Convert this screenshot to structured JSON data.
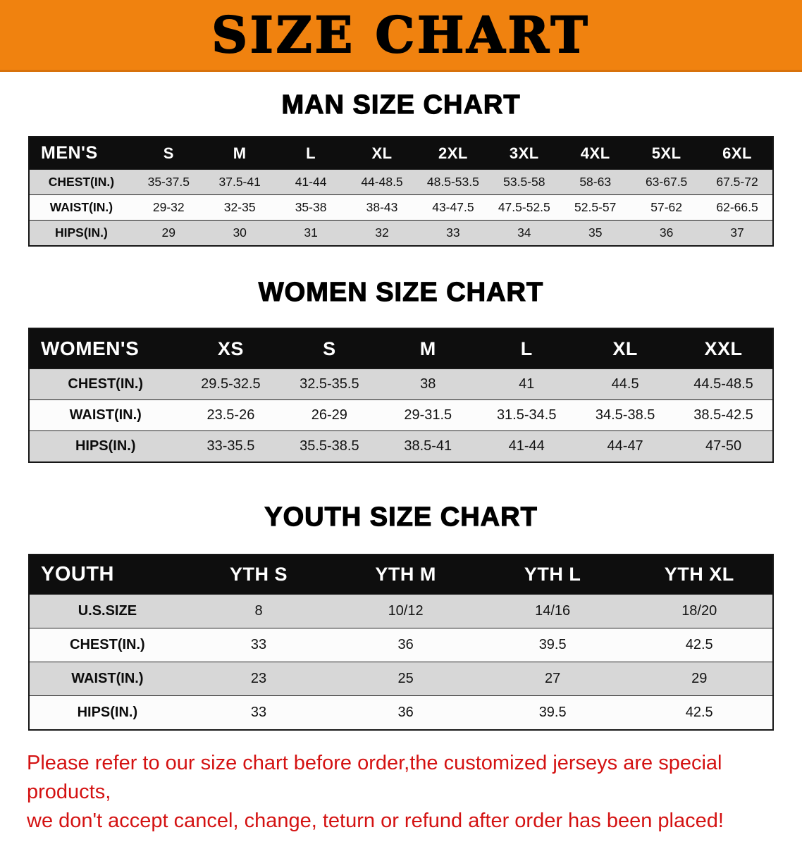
{
  "banner": {
    "title": "SIZE CHART"
  },
  "men": {
    "heading": "MAN SIZE CHART",
    "header": [
      "MEN'S",
      "S",
      "M",
      "L",
      "XL",
      "2XL",
      "3XL",
      "4XL",
      "5XL",
      "6XL"
    ],
    "rows": [
      {
        "label": "CHEST(IN.)",
        "values": [
          "35-37.5",
          "37.5-41",
          "41-44",
          "44-48.5",
          "48.5-53.5",
          "53.5-58",
          "58-63",
          "63-67.5",
          "67.5-72"
        ]
      },
      {
        "label": "WAIST(IN.)",
        "values": [
          "29-32",
          "32-35",
          "35-38",
          "38-43",
          "43-47.5",
          "47.5-52.5",
          "52.5-57",
          "57-62",
          "62-66.5"
        ]
      },
      {
        "label": "HIPS(IN.)",
        "values": [
          "29",
          "30",
          "31",
          "32",
          "33",
          "34",
          "35",
          "36",
          "37"
        ]
      }
    ]
  },
  "women": {
    "heading": "WOMEN SIZE CHART",
    "header": [
      "WOMEN'S",
      "XS",
      "S",
      "M",
      "L",
      "XL",
      "XXL"
    ],
    "rows": [
      {
        "label": "CHEST(IN.)",
        "values": [
          "29.5-32.5",
          "32.5-35.5",
          "38",
          "41",
          "44.5",
          "44.5-48.5"
        ]
      },
      {
        "label": "WAIST(IN.)",
        "values": [
          "23.5-26",
          "26-29",
          "29-31.5",
          "31.5-34.5",
          "34.5-38.5",
          "38.5-42.5"
        ]
      },
      {
        "label": "HIPS(IN.)",
        "values": [
          "33-35.5",
          "35.5-38.5",
          "38.5-41",
          "41-44",
          "44-47",
          "47-50"
        ]
      }
    ]
  },
  "youth": {
    "heading": "YOUTH SIZE CHART",
    "header": [
      "YOUTH",
      "YTH S",
      "YTH M",
      "YTH L",
      "YTH XL"
    ],
    "rows": [
      {
        "label": "U.S.SIZE",
        "values": [
          "8",
          "10/12",
          "14/16",
          "18/20"
        ]
      },
      {
        "label": "CHEST(IN.)",
        "values": [
          "33",
          "36",
          "39.5",
          "42.5"
        ]
      },
      {
        "label": "WAIST(IN.)",
        "values": [
          "23",
          "25",
          "27",
          "29"
        ]
      },
      {
        "label": "HIPS(IN.)",
        "values": [
          "33",
          "36",
          "39.5",
          "42.5"
        ]
      }
    ]
  },
  "disclaimer": {
    "line1": "Please refer to our size chart before order,the customized jerseys are special products,",
    "line2": "we don't accept cancel, change, teturn or refund after order has been placed!"
  },
  "colors": {
    "banner_bg": "#f0820f",
    "header_bg": "#0e0e0e",
    "row_alt": "#d7d7d7",
    "disclaimer_color": "#d41212"
  }
}
